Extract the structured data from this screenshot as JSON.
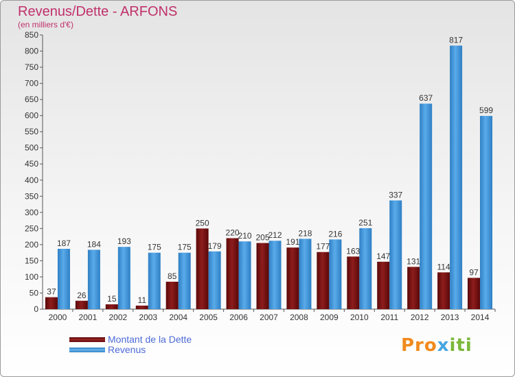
{
  "title": "Revenus/Dette - ARFONS",
  "subtitle": "(en milliers d'€)",
  "logo": {
    "part1": "Pro",
    "part2": "x",
    "part3": "iti"
  },
  "chart_data": {
    "type": "bar",
    "title": "Revenus/Dette - ARFONS",
    "ylabel": "(en milliers d'€)",
    "ylim": [
      0,
      850
    ],
    "yticks": [
      0,
      50,
      100,
      150,
      200,
      250,
      300,
      350,
      400,
      450,
      500,
      550,
      600,
      650,
      700,
      750,
      800,
      850
    ],
    "grid": false,
    "legend_position": "bottom-left",
    "categories": [
      "2000",
      "2001",
      "2002",
      "2003",
      "2004",
      "2005",
      "2006",
      "2007",
      "2008",
      "2009",
      "2010",
      "2011",
      "2012",
      "2013",
      "2014"
    ],
    "series": [
      {
        "name": "Montant de la Dette",
        "color": "#7a1010",
        "values": [
          37,
          26,
          15,
          11,
          85,
          250,
          220,
          205,
          191,
          177,
          163,
          147,
          131,
          114,
          97
        ]
      },
      {
        "name": "Revenus",
        "color": "#3d95dc",
        "values": [
          187,
          184,
          193,
          175,
          175,
          179,
          210,
          212,
          218,
          216,
          251,
          337,
          637,
          817,
          599
        ]
      }
    ]
  }
}
